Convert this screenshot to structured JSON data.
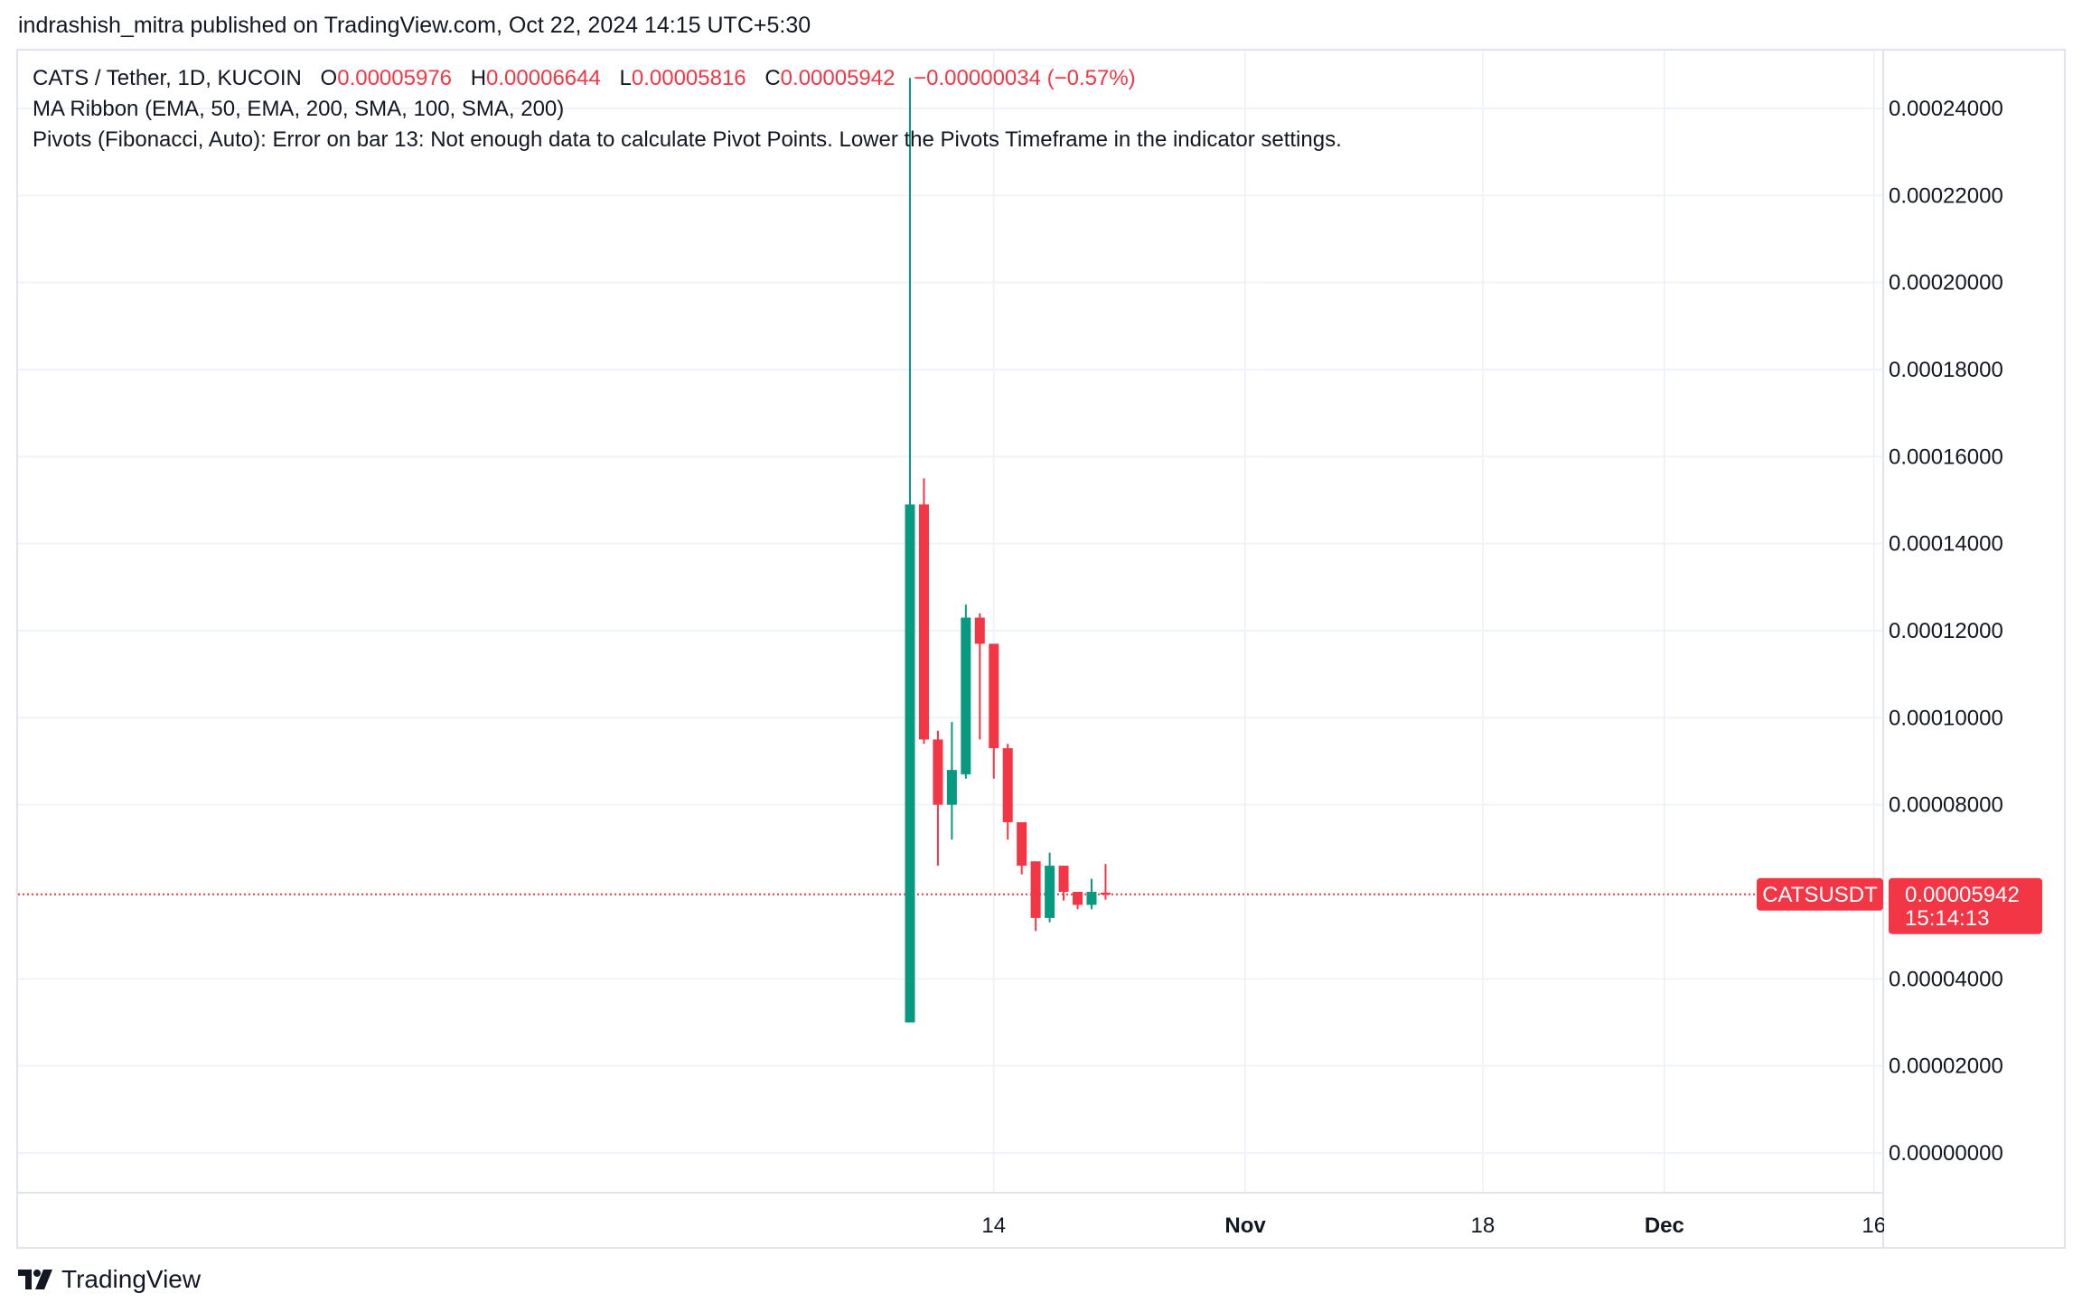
{
  "header": {
    "publish_line": "indrashish_mitra published on TradingView.com, Oct 22, 2024 14:15 UTC+5:30"
  },
  "legend": {
    "symbol_line": "CATS / Tether, 1D, KUCOIN",
    "o_label": "O",
    "o_value": "0.00005976",
    "h_label": "H",
    "h_value": "0.00006644",
    "l_label": "L",
    "l_value": "0.00005816",
    "c_label": "C",
    "c_value": "0.00005942",
    "change": "−0.00000034 (−0.57%)",
    "indicator_1": "MA Ribbon (EMA, 50, EMA, 200, SMA, 100, SMA, 200)",
    "indicator_2": "Pivots (Fibonacci, Auto): Error on bar 13: Not enough data to calculate Pivot Points. Lower the Pivots Timeframe in the indicator settings."
  },
  "brand": {
    "name": "TradingView"
  },
  "colors": {
    "up": "#089981",
    "down": "#f23645",
    "grid": "#f0f3fa",
    "price_line": "#f23645"
  },
  "chart_data": {
    "type": "candlestick",
    "symbol": "CATSUSDT",
    "timeframe": "1D",
    "y_ticks": [
      "0.00024000",
      "0.00022000",
      "0.00020000",
      "0.00018000",
      "0.00016000",
      "0.00014000",
      "0.00012000",
      "0.00010000",
      "0.00008000",
      "0.00004000",
      "0.00002000",
      "0.00000000"
    ],
    "ylim": [
      0,
      0.00024
    ],
    "x_ticks": [
      {
        "label": "14",
        "bold": false,
        "day": 18
      },
      {
        "label": "Nov",
        "bold": true,
        "day": 36
      },
      {
        "label": "18",
        "bold": false,
        "day": 53
      },
      {
        "label": "Dec",
        "bold": true,
        "day": 66
      },
      {
        "label": "16",
        "bold": false,
        "day": 81
      }
    ],
    "candles": [
      {
        "day": 12,
        "o": 3e-05,
        "h": 0.000247,
        "l": 3e-05,
        "c": 0.000149
      },
      {
        "day": 13,
        "o": 0.000149,
        "h": 0.000155,
        "l": 9.4e-05,
        "c": 9.5e-05
      },
      {
        "day": 14,
        "o": 9.5e-05,
        "h": 9.7e-05,
        "l": 6.6e-05,
        "c": 8e-05
      },
      {
        "day": 15,
        "o": 8e-05,
        "h": 9.9e-05,
        "l": 7.2e-05,
        "c": 8.8e-05
      },
      {
        "day": 16,
        "o": 8.7e-05,
        "h": 0.000126,
        "l": 8.6e-05,
        "c": 0.000123
      },
      {
        "day": 17,
        "o": 0.000123,
        "h": 0.000124,
        "l": 9.5e-05,
        "c": 0.000117
      },
      {
        "day": 18,
        "o": 0.000117,
        "h": 0.000117,
        "l": 8.6e-05,
        "c": 9.3e-05
      },
      {
        "day": 19,
        "o": 9.3e-05,
        "h": 9.4e-05,
        "l": 7.2e-05,
        "c": 7.6e-05
      },
      {
        "day": 20,
        "o": 7.6e-05,
        "h": 7.6e-05,
        "l": 6.4e-05,
        "c": 6.6e-05
      },
      {
        "day": 21,
        "o": 6.7e-05,
        "h": 6.7e-05,
        "l": 5.1e-05,
        "c": 5.4e-05
      },
      {
        "day": 22,
        "o": 5.4e-05,
        "h": 6.9e-05,
        "l": 5.3e-05,
        "c": 6.6e-05
      },
      {
        "day": 23,
        "o": 6.6e-05,
        "h": 6.6e-05,
        "l": 5.8e-05,
        "c": 6e-05
      },
      {
        "day": 24,
        "o": 6e-05,
        "h": 6e-05,
        "l": 5.6e-05,
        "c": 5.7e-05
      },
      {
        "day": 25,
        "o": 5.7e-05,
        "h": 6.3e-05,
        "l": 5.6e-05,
        "c": 6e-05
      },
      {
        "day": 26,
        "o": 5.98e-05,
        "h": 6.64e-05,
        "l": 5.82e-05,
        "c": 5.94e-05
      }
    ],
    "last_price": {
      "label": "CATSUSDT",
      "value": 5.942e-05,
      "value_text": "0.00005942",
      "countdown": "15:14:13"
    }
  }
}
